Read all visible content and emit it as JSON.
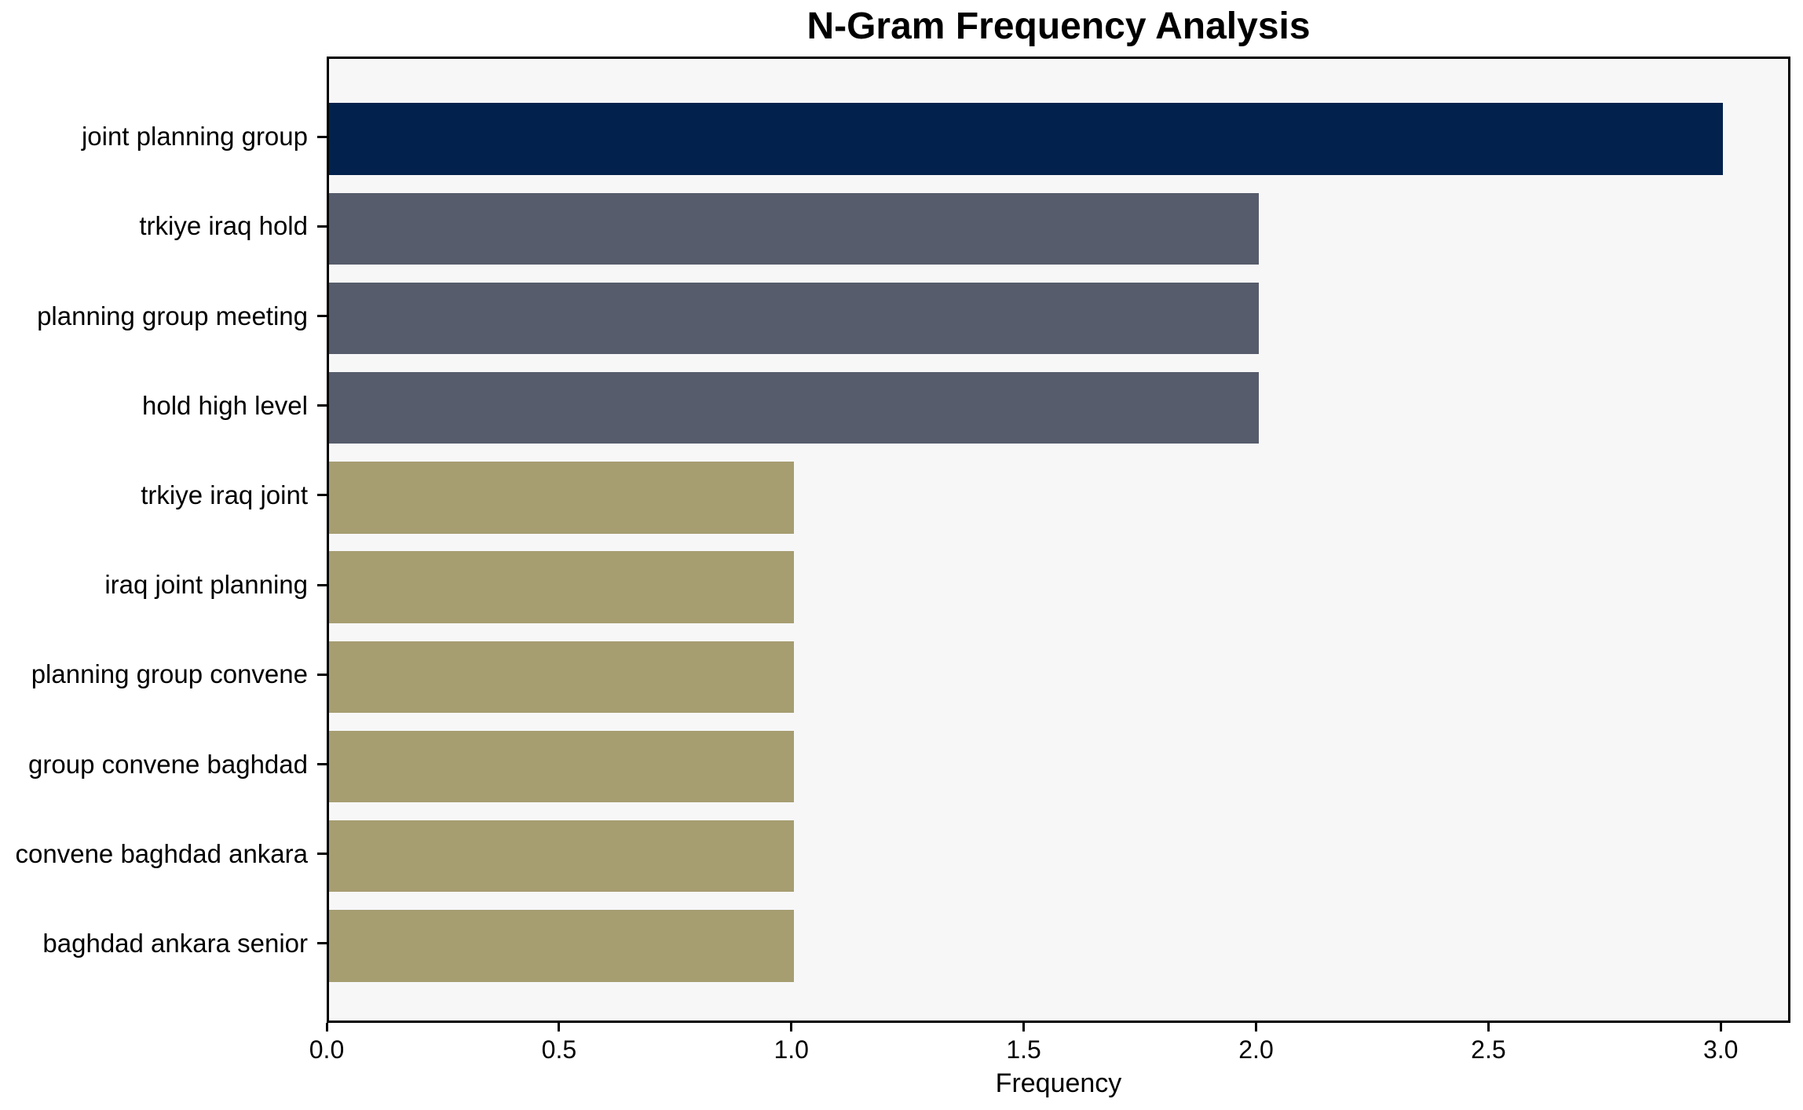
{
  "chart_data": {
    "type": "bar",
    "orientation": "horizontal",
    "title": "N-Gram Frequency Analysis",
    "xlabel": "Frequency",
    "ylabel": "",
    "categories": [
      "joint planning group",
      "trkiye iraq hold",
      "planning group meeting",
      "hold high level",
      "trkiye iraq joint",
      "iraq joint planning",
      "planning group convene",
      "group convene baghdad",
      "convene baghdad ankara",
      "baghdad ankara senior"
    ],
    "values": [
      3,
      2,
      2,
      2,
      1,
      1,
      1,
      1,
      1,
      1
    ],
    "bar_colors": [
      "#02224d",
      "#565c6b",
      "#565c6b",
      "#565c6b",
      "#a69d71",
      "#a69d71",
      "#a69d71",
      "#a69d71",
      "#a69d71",
      "#a69d71"
    ],
    "xticks": [
      "0.0",
      "0.5",
      "1.0",
      "1.5",
      "2.0",
      "2.5",
      "3.0"
    ],
    "xlim": [
      0,
      3.15
    ],
    "grid": false,
    "legend": null,
    "plot_background": "#f7f7f8",
    "figure_background": "#ffffff",
    "spine_color": "#000000"
  }
}
